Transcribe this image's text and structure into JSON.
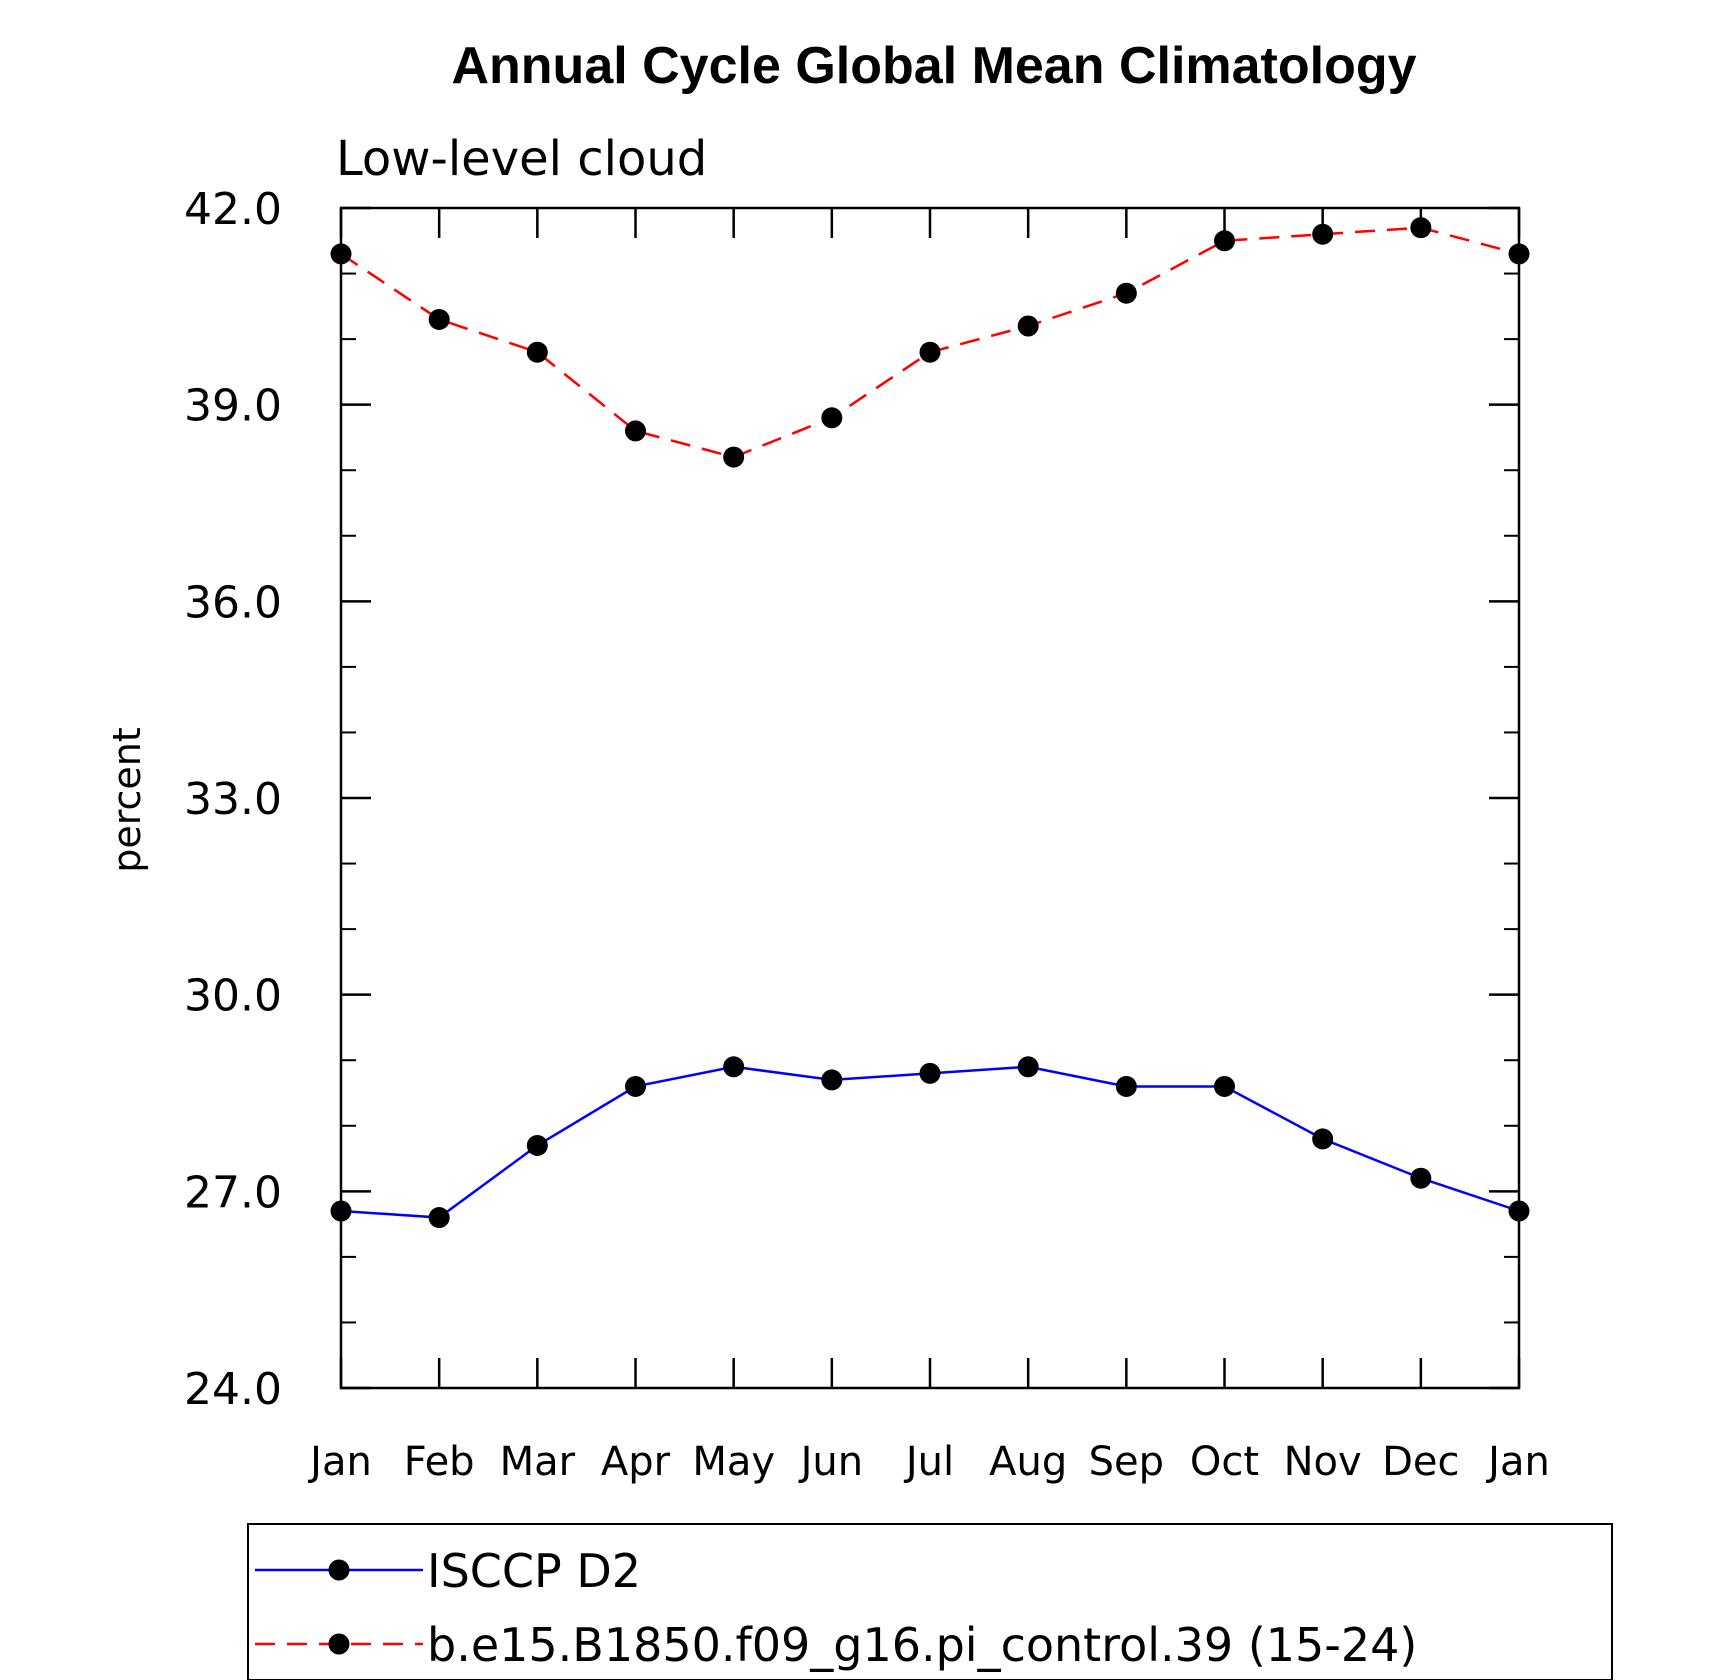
{
  "chart_data": {
    "type": "line",
    "title": "Annual Cycle Global Mean Climatology",
    "subtitle": "Low-level cloud",
    "ylabel": "percent",
    "xlabel": "",
    "categories": [
      "Jan",
      "Feb",
      "Mar",
      "Apr",
      "May",
      "Jun",
      "Jul",
      "Aug",
      "Sep",
      "Oct",
      "Nov",
      "Dec",
      "Jan"
    ],
    "ylim": [
      24.0,
      42.0
    ],
    "yticks": [
      "24.0",
      "27.0",
      "30.0",
      "33.0",
      "36.0",
      "39.0",
      "42.0"
    ],
    "ytick_values": [
      24.0,
      27.0,
      30.0,
      33.0,
      36.0,
      39.0,
      42.0
    ],
    "y_minor_step": 1.0,
    "grid": false,
    "legend_position": "bottom",
    "series": [
      {
        "name": "ISCCP D2",
        "color": "#0000ff",
        "line_style": "solid",
        "marker": "filled-circle",
        "marker_color": "#000000",
        "values": [
          26.7,
          26.6,
          27.7,
          28.6,
          28.9,
          28.7,
          28.8,
          28.9,
          28.6,
          28.6,
          27.8,
          27.2,
          26.7
        ]
      },
      {
        "name": "b.e15.B1850.f09_g16.pi_control.39 (15-24)",
        "color": "#ff0000",
        "line_style": "dashed",
        "marker": "filled-circle",
        "marker_color": "#000000",
        "values": [
          41.3,
          40.3,
          39.8,
          38.6,
          38.2,
          38.8,
          39.8,
          40.2,
          40.7,
          41.5,
          41.6,
          41.7,
          41.3
        ]
      }
    ]
  }
}
